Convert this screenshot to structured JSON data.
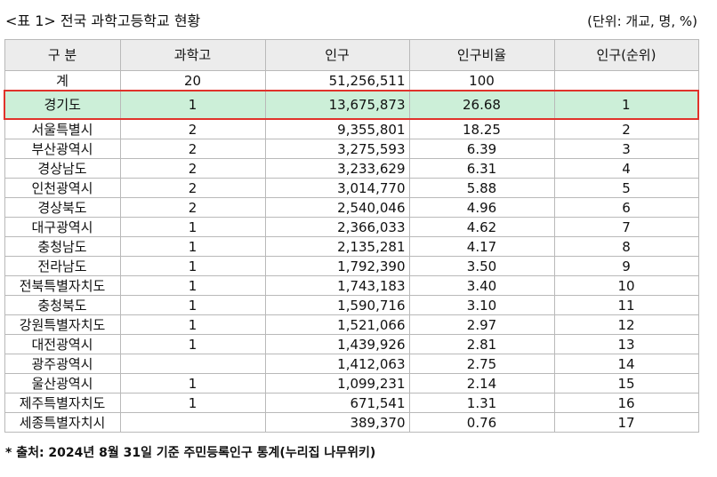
{
  "title": "<표 1> 전국 과학고등학교 현황",
  "unit": "(단위: 개교, 명, %)",
  "headers": [
    "구   분",
    "과학고",
    "인구",
    "인구비율",
    "인구(순위)"
  ],
  "rows": [
    [
      "계",
      "20",
      "51,256,511",
      "100",
      ""
    ],
    [
      "경기도",
      "1",
      "13,675,873",
      "26.68",
      "1"
    ],
    [
      "서울특별시",
      "2",
      "9,355,801",
      "18.25",
      "2"
    ],
    [
      "부산광역시",
      "2",
      "3,275,593",
      "6.39",
      "3"
    ],
    [
      "경상남도",
      "2",
      "3,233,629",
      "6.31",
      "4"
    ],
    [
      "인천광역시",
      "2",
      "3,014,770",
      "5.88",
      "5"
    ],
    [
      "경상북도",
      "2",
      "2,540,046",
      "4.96",
      "6"
    ],
    [
      "대구광역시",
      "1",
      "2,366,033",
      "4.62",
      "7"
    ],
    [
      "충청남도",
      "1",
      "2,135,281",
      "4.17",
      "8"
    ],
    [
      "전라남도",
      "1",
      "1,792,390",
      "3.50",
      "9"
    ],
    [
      "전북특별자치도",
      "1",
      "1,743,183",
      "3.40",
      "10"
    ],
    [
      "충청북도",
      "1",
      "1,590,716",
      "3.10",
      "11"
    ],
    [
      "강원특별자치도",
      "1",
      "1,521,066",
      "2.97",
      "12"
    ],
    [
      "대전광역시",
      "1",
      "1,439,926",
      "2.81",
      "13"
    ],
    [
      "광주광역시",
      "",
      "1,412,063",
      "2.75",
      "14"
    ],
    [
      "울산광역시",
      "1",
      "1,099,231",
      "2.14",
      "15"
    ],
    [
      "제주특별자치도",
      "1",
      "671,541",
      "1.31",
      "16"
    ],
    [
      "세종특별자치시",
      "",
      "389,370",
      "0.76",
      "17"
    ]
  ],
  "highlight_row": 1,
  "highlight_colors": {
    "fill": "#ccefd8",
    "border": "#e0332b"
  },
  "note": "* 출처: 2024년 8월 31일 기준 주민등록인구 통계(누리집 나무위키)"
}
